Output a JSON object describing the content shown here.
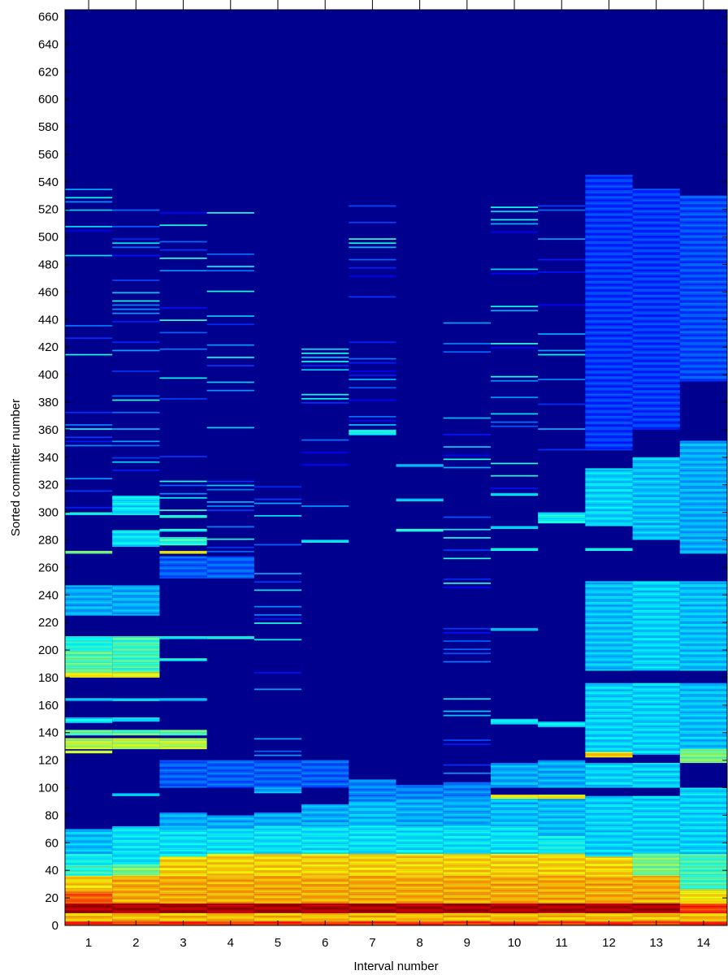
{
  "chart_data": {
    "type": "heatmap",
    "title": "",
    "xlabel": "Interval number",
    "ylabel": "Sorted committer number",
    "xlim": [
      0.5,
      14.5
    ],
    "ylim": [
      0,
      665
    ],
    "x_ticks": [
      1,
      2,
      3,
      4,
      5,
      6,
      7,
      8,
      9,
      10,
      11,
      12,
      13,
      14
    ],
    "y_ticks": [
      0,
      20,
      40,
      60,
      80,
      100,
      120,
      140,
      160,
      180,
      200,
      220,
      240,
      260,
      280,
      300,
      320,
      340,
      360,
      380,
      400,
      420,
      440,
      460,
      480,
      500,
      520,
      540,
      560,
      580,
      600,
      620,
      640,
      660
    ],
    "x_tick_labels": [
      "1",
      "2",
      "3",
      "4",
      "5",
      "6",
      "7",
      "8",
      "9",
      "10",
      "11",
      "12",
      "13",
      "14"
    ],
    "y_tick_labels": [
      "0",
      "20",
      "40",
      "60",
      "80",
      "100",
      "120",
      "140",
      "160",
      "180",
      "200",
      "220",
      "240",
      "260",
      "280",
      "300",
      "320",
      "340",
      "360",
      "380",
      "400",
      "420",
      "440",
      "460",
      "480",
      "500",
      "520",
      "540",
      "560",
      "580",
      "600",
      "620",
      "640",
      "660"
    ],
    "colormap": "jet",
    "background_color": "#00008f",
    "grid": false,
    "legend": "none",
    "intervals": [
      {
        "x": 1,
        "active_committers": 540,
        "bands": [
          {
            "from": 0,
            "to": 3,
            "level": 0.82
          },
          {
            "from": 3,
            "to": 9,
            "level": 0.68
          },
          {
            "from": 9,
            "to": 16,
            "level": 0.95
          },
          {
            "from": 16,
            "to": 25,
            "level": 0.78
          },
          {
            "from": 25,
            "to": 36,
            "level": 0.66
          },
          {
            "from": 36,
            "to": 44,
            "level": 0.42
          },
          {
            "from": 44,
            "to": 52,
            "level": 0.38
          },
          {
            "from": 52,
            "to": 70,
            "level": 0.32
          },
          {
            "from": 125,
            "to": 127,
            "level": 0.6
          },
          {
            "from": 128,
            "to": 136,
            "level": 0.56
          },
          {
            "from": 138,
            "to": 142,
            "level": 0.46
          },
          {
            "from": 147,
            "to": 151,
            "level": 0.36
          },
          {
            "from": 163,
            "to": 165,
            "level": 0.34
          },
          {
            "from": 180,
            "to": 184,
            "level": 0.62
          },
          {
            "from": 184,
            "to": 200,
            "level": 0.46
          },
          {
            "from": 200,
            "to": 210,
            "level": 0.4
          },
          {
            "from": 225,
            "to": 247,
            "level": 0.3
          },
          {
            "from": 270,
            "to": 272,
            "level": 0.48
          },
          {
            "from": 298,
            "to": 300,
            "level": 0.4
          }
        ]
      },
      {
        "x": 2,
        "active_committers": 520,
        "bands": [
          {
            "from": 0,
            "to": 3,
            "level": 0.82
          },
          {
            "from": 3,
            "to": 9,
            "level": 0.68
          },
          {
            "from": 9,
            "to": 16,
            "level": 0.95
          },
          {
            "from": 16,
            "to": 36,
            "level": 0.7
          },
          {
            "from": 36,
            "to": 44,
            "level": 0.5
          },
          {
            "from": 44,
            "to": 72,
            "level": 0.36
          },
          {
            "from": 94,
            "to": 96,
            "level": 0.34
          },
          {
            "from": 128,
            "to": 136,
            "level": 0.56
          },
          {
            "from": 138,
            "to": 142,
            "level": 0.46
          },
          {
            "from": 148,
            "to": 151,
            "level": 0.36
          },
          {
            "from": 163,
            "to": 165,
            "level": 0.34
          },
          {
            "from": 180,
            "to": 184,
            "level": 0.62
          },
          {
            "from": 184,
            "to": 210,
            "level": 0.44
          },
          {
            "from": 225,
            "to": 247,
            "level": 0.3
          },
          {
            "from": 275,
            "to": 287,
            "level": 0.36
          },
          {
            "from": 298,
            "to": 312,
            "level": 0.36
          }
        ]
      },
      {
        "x": 3,
        "active_committers": 535,
        "bands": [
          {
            "from": 0,
            "to": 3,
            "level": 0.82
          },
          {
            "from": 3,
            "to": 9,
            "level": 0.68
          },
          {
            "from": 9,
            "to": 16,
            "level": 0.95
          },
          {
            "from": 16,
            "to": 36,
            "level": 0.7
          },
          {
            "from": 36,
            "to": 50,
            "level": 0.66
          },
          {
            "from": 50,
            "to": 70,
            "level": 0.36
          },
          {
            "from": 70,
            "to": 82,
            "level": 0.3
          },
          {
            "from": 100,
            "to": 120,
            "level": 0.22
          },
          {
            "from": 128,
            "to": 136,
            "level": 0.56
          },
          {
            "from": 138,
            "to": 142,
            "level": 0.46
          },
          {
            "from": 163,
            "to": 165,
            "level": 0.34
          },
          {
            "from": 192,
            "to": 194,
            "level": 0.4
          },
          {
            "from": 208,
            "to": 210,
            "level": 0.4
          },
          {
            "from": 252,
            "to": 268,
            "level": 0.22
          },
          {
            "from": 270,
            "to": 272,
            "level": 0.62
          },
          {
            "from": 276,
            "to": 282,
            "level": 0.42
          },
          {
            "from": 286,
            "to": 288,
            "level": 0.4
          },
          {
            "from": 296,
            "to": 298,
            "level": 0.4
          }
        ]
      },
      {
        "x": 4,
        "active_committers": 520,
        "bands": [
          {
            "from": 0,
            "to": 3,
            "level": 0.82
          },
          {
            "from": 3,
            "to": 9,
            "level": 0.68
          },
          {
            "from": 9,
            "to": 16,
            "level": 0.95
          },
          {
            "from": 16,
            "to": 36,
            "level": 0.7
          },
          {
            "from": 36,
            "to": 52,
            "level": 0.66
          },
          {
            "from": 52,
            "to": 70,
            "level": 0.36
          },
          {
            "from": 70,
            "to": 80,
            "level": 0.3
          },
          {
            "from": 100,
            "to": 120,
            "level": 0.22
          },
          {
            "from": 208,
            "to": 210,
            "level": 0.38
          },
          {
            "from": 252,
            "to": 268,
            "level": 0.22
          }
        ]
      },
      {
        "x": 5,
        "active_committers": 320,
        "bands": [
          {
            "from": 0,
            "to": 3,
            "level": 0.82
          },
          {
            "from": 3,
            "to": 9,
            "level": 0.68
          },
          {
            "from": 9,
            "to": 16,
            "level": 0.95
          },
          {
            "from": 16,
            "to": 36,
            "level": 0.7
          },
          {
            "from": 36,
            "to": 52,
            "level": 0.66
          },
          {
            "from": 52,
            "to": 72,
            "level": 0.36
          },
          {
            "from": 72,
            "to": 82,
            "level": 0.3
          },
          {
            "from": 96,
            "to": 100,
            "level": 0.3
          },
          {
            "from": 100,
            "to": 120,
            "level": 0.22
          }
        ]
      },
      {
        "x": 6,
        "active_committers": 445,
        "bands": [
          {
            "from": 0,
            "to": 3,
            "level": 0.82
          },
          {
            "from": 3,
            "to": 9,
            "level": 0.68
          },
          {
            "from": 9,
            "to": 16,
            "level": 0.95
          },
          {
            "from": 16,
            "to": 36,
            "level": 0.7
          },
          {
            "from": 36,
            "to": 52,
            "level": 0.66
          },
          {
            "from": 52,
            "to": 72,
            "level": 0.36
          },
          {
            "from": 72,
            "to": 88,
            "level": 0.3
          },
          {
            "from": 100,
            "to": 120,
            "level": 0.22
          },
          {
            "from": 278,
            "to": 280,
            "level": 0.36
          }
        ]
      },
      {
        "x": 7,
        "active_committers": 545,
        "bands": [
          {
            "from": 0,
            "to": 3,
            "level": 0.82
          },
          {
            "from": 3,
            "to": 9,
            "level": 0.68
          },
          {
            "from": 9,
            "to": 16,
            "level": 0.95
          },
          {
            "from": 16,
            "to": 36,
            "level": 0.7
          },
          {
            "from": 36,
            "to": 52,
            "level": 0.66
          },
          {
            "from": 52,
            "to": 72,
            "level": 0.36
          },
          {
            "from": 72,
            "to": 90,
            "level": 0.32
          },
          {
            "from": 90,
            "to": 106,
            "level": 0.26
          },
          {
            "from": 356,
            "to": 360,
            "level": 0.38
          }
        ]
      },
      {
        "x": 8,
        "active_committers": 335,
        "bands": [
          {
            "from": 0,
            "to": 3,
            "level": 0.82
          },
          {
            "from": 3,
            "to": 9,
            "level": 0.68
          },
          {
            "from": 9,
            "to": 16,
            "level": 0.95
          },
          {
            "from": 16,
            "to": 36,
            "level": 0.7
          },
          {
            "from": 36,
            "to": 52,
            "level": 0.66
          },
          {
            "from": 52,
            "to": 72,
            "level": 0.36
          },
          {
            "from": 72,
            "to": 92,
            "level": 0.3
          },
          {
            "from": 92,
            "to": 102,
            "level": 0.26
          },
          {
            "from": 286,
            "to": 288,
            "level": 0.38
          },
          {
            "from": 308,
            "to": 310,
            "level": 0.36
          },
          {
            "from": 333,
            "to": 335,
            "level": 0.34
          }
        ]
      },
      {
        "x": 9,
        "active_committers": 440,
        "bands": [
          {
            "from": 0,
            "to": 3,
            "level": 0.82
          },
          {
            "from": 3,
            "to": 9,
            "level": 0.68
          },
          {
            "from": 9,
            "to": 16,
            "level": 0.95
          },
          {
            "from": 16,
            "to": 36,
            "level": 0.7
          },
          {
            "from": 36,
            "to": 52,
            "level": 0.66
          },
          {
            "from": 52,
            "to": 72,
            "level": 0.36
          },
          {
            "from": 72,
            "to": 92,
            "level": 0.3
          },
          {
            "from": 92,
            "to": 104,
            "level": 0.26
          }
        ]
      },
      {
        "x": 10,
        "active_committers": 535,
        "bands": [
          {
            "from": 0,
            "to": 3,
            "level": 0.82
          },
          {
            "from": 3,
            "to": 9,
            "level": 0.68
          },
          {
            "from": 9,
            "to": 16,
            "level": 0.95
          },
          {
            "from": 16,
            "to": 36,
            "level": 0.7
          },
          {
            "from": 36,
            "to": 52,
            "level": 0.66
          },
          {
            "from": 52,
            "to": 72,
            "level": 0.36
          },
          {
            "from": 72,
            "to": 92,
            "level": 0.32
          },
          {
            "from": 92,
            "to": 95,
            "level": 0.62
          },
          {
            "from": 100,
            "to": 118,
            "level": 0.3
          },
          {
            "from": 146,
            "to": 150,
            "level": 0.36
          },
          {
            "from": 214,
            "to": 216,
            "level": 0.34
          },
          {
            "from": 272,
            "to": 274,
            "level": 0.42
          },
          {
            "from": 288,
            "to": 290,
            "level": 0.38
          },
          {
            "from": 312,
            "to": 314,
            "level": 0.36
          }
        ]
      },
      {
        "x": 11,
        "active_committers": 530,
        "bands": [
          {
            "from": 0,
            "to": 3,
            "level": 0.82
          },
          {
            "from": 3,
            "to": 9,
            "level": 0.68
          },
          {
            "from": 9,
            "to": 16,
            "level": 0.95
          },
          {
            "from": 16,
            "to": 36,
            "level": 0.7
          },
          {
            "from": 36,
            "to": 52,
            "level": 0.66
          },
          {
            "from": 52,
            "to": 65,
            "level": 0.38
          },
          {
            "from": 65,
            "to": 92,
            "level": 0.32
          },
          {
            "from": 92,
            "to": 95,
            "level": 0.62
          },
          {
            "from": 100,
            "to": 120,
            "level": 0.3
          },
          {
            "from": 144,
            "to": 148,
            "level": 0.36
          },
          {
            "from": 292,
            "to": 300,
            "level": 0.38
          }
        ]
      },
      {
        "x": 12,
        "active_committers": 545,
        "bands": [
          {
            "from": 0,
            "to": 3,
            "level": 0.82
          },
          {
            "from": 3,
            "to": 9,
            "level": 0.68
          },
          {
            "from": 9,
            "to": 16,
            "level": 0.95
          },
          {
            "from": 16,
            "to": 36,
            "level": 0.7
          },
          {
            "from": 36,
            "to": 50,
            "level": 0.66
          },
          {
            "from": 50,
            "to": 94,
            "level": 0.34
          },
          {
            "from": 100,
            "to": 118,
            "level": 0.34
          },
          {
            "from": 122,
            "to": 126,
            "level": 0.66
          },
          {
            "from": 126,
            "to": 176,
            "level": 0.34
          },
          {
            "from": 185,
            "to": 250,
            "level": 0.32
          },
          {
            "from": 272,
            "to": 274,
            "level": 0.42
          },
          {
            "from": 290,
            "to": 332,
            "level": 0.34
          },
          {
            "from": 345,
            "to": 545,
            "level": 0.18
          }
        ]
      },
      {
        "x": 13,
        "active_committers": 535,
        "bands": [
          {
            "from": 0,
            "to": 3,
            "level": 0.82
          },
          {
            "from": 3,
            "to": 9,
            "level": 0.68
          },
          {
            "from": 9,
            "to": 16,
            "level": 0.95
          },
          {
            "from": 16,
            "to": 36,
            "level": 0.7
          },
          {
            "from": 36,
            "to": 52,
            "level": 0.5
          },
          {
            "from": 52,
            "to": 94,
            "level": 0.34
          },
          {
            "from": 100,
            "to": 118,
            "level": 0.34
          },
          {
            "from": 124,
            "to": 176,
            "level": 0.34
          },
          {
            "from": 185,
            "to": 250,
            "level": 0.34
          },
          {
            "from": 280,
            "to": 340,
            "level": 0.32
          },
          {
            "from": 360,
            "to": 535,
            "level": 0.18
          }
        ]
      },
      {
        "x": 14,
        "active_committers": 530,
        "bands": [
          {
            "from": 0,
            "to": 3,
            "level": 0.82
          },
          {
            "from": 3,
            "to": 9,
            "level": 0.68
          },
          {
            "from": 9,
            "to": 16,
            "level": 0.82
          },
          {
            "from": 16,
            "to": 26,
            "level": 0.64
          },
          {
            "from": 26,
            "to": 52,
            "level": 0.44
          },
          {
            "from": 52,
            "to": 100,
            "level": 0.34
          },
          {
            "from": 118,
            "to": 128,
            "level": 0.5
          },
          {
            "from": 128,
            "to": 176,
            "level": 0.32
          },
          {
            "from": 185,
            "to": 250,
            "level": 0.32
          },
          {
            "from": 270,
            "to": 352,
            "level": 0.3
          },
          {
            "from": 395,
            "to": 530,
            "level": 0.2
          }
        ]
      }
    ]
  }
}
